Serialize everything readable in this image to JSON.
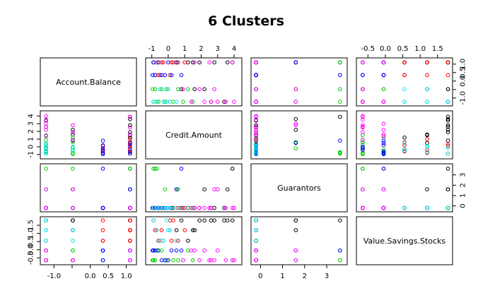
{
  "chart_data": {
    "type": "scatter",
    "subtype": "pairs-matrix",
    "title": "6  Clusters",
    "variables": [
      "Account.Balance",
      "Credit.Amount",
      "Guarantors",
      "Value.Savings.Stocks"
    ],
    "clusters": [
      {
        "id": 1,
        "color": "#000000"
      },
      {
        "id": 2,
        "color": "#ff0000"
      },
      {
        "id": 3,
        "color": "#00cd00"
      },
      {
        "id": 4,
        "color": "#0000ff"
      },
      {
        "id": 5,
        "color": "#00e5ee"
      },
      {
        "id": 6,
        "color": "#ff00ff"
      }
    ],
    "axes": {
      "Account.Balance": {
        "range": [
          -1.3,
          1.2
        ],
        "ticks": [
          -1.0,
          -0.5,
          0.0,
          0.5,
          1.0
        ],
        "tick_labels": [
          "-1.0",
          "",
          "0.0",
          "0.5",
          "1.0"
        ]
      },
      "Credit.Amount": {
        "range": [
          -1.2,
          4.3
        ],
        "ticks": [
          -1,
          0,
          1,
          2,
          3,
          4
        ],
        "tick_labels": [
          "-1",
          "0",
          "1",
          "2",
          "3",
          "4"
        ]
      },
      "Guarantors": {
        "range": [
          -0.3,
          3.8
        ],
        "ticks": [
          0,
          1,
          2,
          3
        ],
        "tick_labels": [
          "0",
          "1",
          "2",
          "3"
        ]
      },
      "Value.Savings.Stocks": {
        "range": [
          -0.75,
          1.85
        ],
        "ticks": [
          -1.0,
          -0.5,
          0.0,
          0.5,
          1.0,
          1.5
        ],
        "tick_labels": [
          "",
          "-0.5",
          "0.0",
          "0.5",
          "1.0",
          "1.5"
        ]
      }
    },
    "side_axes": {
      "top": {
        "Credit.Amount": [
          "-1",
          "0",
          "1",
          "2",
          "3",
          "4"
        ],
        "Value.Savings.Stocks": [
          "-0.5",
          "0.0",
          "0.5",
          "1.0",
          "1.5"
        ]
      },
      "right": {
        "Account.Balance": [
          "-1.0",
          "-0.5",
          "0.0",
          "0.5"
        ],
        "Guarantors": [
          "0",
          "1",
          "2",
          "3"
        ]
      },
      "bottom": {
        "Account.Balance": [
          "-1.0",
          "0.0",
          "0.5",
          "1.0"
        ],
        "Guarantors": [
          "0",
          "1",
          "2",
          "3"
        ]
      },
      "left": {
        "Credit.Amount": [
          "-1",
          "1",
          "3"
        ],
        "Value.Savings.Stocks": [
          "-0.5",
          "0.5",
          "1.0"
        ]
      }
    },
    "levels": {
      "Account.Balance": [
        -1.22,
        -0.48,
        0.35,
        1.1
      ],
      "Guarantors": [
        -0.2,
        1.6,
        3.6
      ],
      "Value.Savings.Stocks": [
        -0.65,
        -0.05,
        0.55,
        1.2,
        1.8
      ]
    },
    "points": [
      {
        "cluster": 1,
        "values": [
          1.1,
          3.6,
          1.6,
          1.8
        ]
      },
      {
        "cluster": 1,
        "values": [
          1.1,
          2.8,
          -0.2,
          1.8
        ]
      },
      {
        "cluster": 1,
        "values": [
          -0.48,
          2.2,
          1.6,
          1.8
        ]
      },
      {
        "cluster": 1,
        "values": [
          1.1,
          1.9,
          -0.2,
          1.8
        ]
      },
      {
        "cluster": 1,
        "values": [
          -1.22,
          3.4,
          -0.2,
          1.8
        ]
      },
      {
        "cluster": 1,
        "values": [
          1.1,
          1.5,
          -0.2,
          1.2
        ]
      },
      {
        "cluster": 1,
        "values": [
          -0.48,
          0.8,
          -0.2,
          1.8
        ]
      },
      {
        "cluster": 1,
        "values": [
          1.1,
          0.5,
          1.6,
          1.2
        ]
      },
      {
        "cluster": 1,
        "values": [
          -1.22,
          2.6,
          -0.2,
          1.8
        ]
      },
      {
        "cluster": 1,
        "values": [
          1.1,
          1.2,
          -0.2,
          0.55
        ]
      },
      {
        "cluster": 1,
        "values": [
          1.1,
          3.9,
          3.6,
          1.8
        ]
      },
      {
        "cluster": 1,
        "values": [
          -0.48,
          1.6,
          -0.2,
          1.2
        ]
      },
      {
        "cluster": 2,
        "values": [
          0.35,
          -0.5,
          -0.2,
          0.55
        ]
      },
      {
        "cluster": 2,
        "values": [
          1.1,
          -0.3,
          -0.2,
          0.55
        ]
      },
      {
        "cluster": 2,
        "values": [
          1.1,
          0.2,
          -0.2,
          0.55
        ]
      },
      {
        "cluster": 2,
        "values": [
          0.35,
          -0.8,
          -0.2,
          1.2
        ]
      },
      {
        "cluster": 2,
        "values": [
          1.1,
          0.6,
          -0.2,
          0.55
        ]
      },
      {
        "cluster": 2,
        "values": [
          1.1,
          -0.7,
          -0.2,
          1.2
        ]
      },
      {
        "cluster": 2,
        "values": [
          0.35,
          0.1,
          -0.2,
          1.8
        ]
      },
      {
        "cluster": 2,
        "values": [
          1.1,
          -0.9,
          -0.2,
          1.8
        ]
      },
      {
        "cluster": 2,
        "values": [
          1.1,
          1.0,
          -0.2,
          1.2
        ]
      },
      {
        "cluster": 2,
        "values": [
          0.35,
          -0.6,
          -0.2,
          0.55
        ]
      },
      {
        "cluster": 2,
        "values": [
          1.1,
          -0.4,
          -0.2,
          1.2
        ]
      },
      {
        "cluster": 2,
        "values": [
          1.1,
          0.3,
          -0.2,
          1.8
        ]
      },
      {
        "cluster": 3,
        "values": [
          -1.22,
          -0.9,
          -0.2,
          -0.65
        ]
      },
      {
        "cluster": 3,
        "values": [
          -1.22,
          -0.6,
          -0.2,
          -0.05
        ]
      },
      {
        "cluster": 3,
        "values": [
          -1.22,
          -0.2,
          1.6,
          -0.65
        ]
      },
      {
        "cluster": 3,
        "values": [
          -0.48,
          -0.8,
          3.6,
          -0.65
        ]
      },
      {
        "cluster": 3,
        "values": [
          -0.48,
          -0.4,
          -0.2,
          -0.05
        ]
      },
      {
        "cluster": 3,
        "values": [
          -1.22,
          0.3,
          -0.2,
          -0.65
        ]
      },
      {
        "cluster": 3,
        "values": [
          -0.48,
          0.6,
          1.6,
          -0.65
        ]
      },
      {
        "cluster": 3,
        "values": [
          -1.22,
          -0.7,
          3.6,
          -0.05
        ]
      },
      {
        "cluster": 3,
        "values": [
          -0.48,
          -0.1,
          -0.2,
          -0.65
        ]
      },
      {
        "cluster": 3,
        "values": [
          -1.22,
          0.9,
          -0.2,
          -0.65
        ]
      },
      {
        "cluster": 3,
        "values": [
          -0.48,
          1.2,
          -0.2,
          -0.05
        ]
      },
      {
        "cluster": 3,
        "values": [
          1.1,
          -0.9,
          3.6,
          -0.65
        ]
      },
      {
        "cluster": 3,
        "values": [
          -1.22,
          1.5,
          -0.2,
          -0.65
        ]
      },
      {
        "cluster": 3,
        "values": [
          -0.48,
          -0.95,
          -0.2,
          -0.65
        ]
      },
      {
        "cluster": 4,
        "values": [
          0.35,
          -0.8,
          -0.2,
          -0.05
        ]
      },
      {
        "cluster": 4,
        "values": [
          0.35,
          -0.4,
          -0.2,
          -0.65
        ]
      },
      {
        "cluster": 4,
        "values": [
          1.1,
          -0.6,
          -0.2,
          -0.05
        ]
      },
      {
        "cluster": 4,
        "values": [
          0.35,
          0.2,
          -0.2,
          -0.05
        ]
      },
      {
        "cluster": 4,
        "values": [
          1.1,
          0.5,
          1.6,
          -0.05
        ]
      },
      {
        "cluster": 4,
        "values": [
          0.35,
          -0.2,
          -0.2,
          -0.65
        ]
      },
      {
        "cluster": 4,
        "values": [
          1.1,
          -0.9,
          -0.2,
          -0.05
        ]
      },
      {
        "cluster": 4,
        "values": [
          0.35,
          0.8,
          3.6,
          -0.05
        ]
      },
      {
        "cluster": 4,
        "values": [
          1.1,
          0.0,
          -0.2,
          -0.65
        ]
      },
      {
        "cluster": 4,
        "values": [
          0.35,
          -0.95,
          -0.2,
          -0.05
        ]
      },
      {
        "cluster": 5,
        "values": [
          -1.22,
          -0.7,
          -0.2,
          1.2
        ]
      },
      {
        "cluster": 5,
        "values": [
          -1.22,
          -0.3,
          -0.2,
          0.55
        ]
      },
      {
        "cluster": 5,
        "values": [
          -1.22,
          0.1,
          -0.2,
          1.2
        ]
      },
      {
        "cluster": 5,
        "values": [
          -0.48,
          -0.5,
          -0.2,
          0.55
        ]
      },
      {
        "cluster": 5,
        "values": [
          -1.22,
          -0.9,
          -0.2,
          1.8
        ]
      },
      {
        "cluster": 5,
        "values": [
          -0.48,
          0.0,
          -0.2,
          1.2
        ]
      },
      {
        "cluster": 5,
        "values": [
          -1.22,
          0.5,
          -0.2,
          0.55
        ]
      },
      {
        "cluster": 5,
        "values": [
          -1.22,
          -0.1,
          -0.2,
          1.8
        ]
      },
      {
        "cluster": 6,
        "values": [
          -1.22,
          2.2,
          -0.2,
          -0.05
        ]
      },
      {
        "cluster": 6,
        "values": [
          -1.22,
          3.5,
          -0.2,
          -0.65
        ]
      },
      {
        "cluster": 6,
        "values": [
          -0.48,
          2.8,
          1.6,
          -0.65
        ]
      },
      {
        "cluster": 6,
        "values": [
          -1.22,
          1.4,
          -0.2,
          -0.05
        ]
      },
      {
        "cluster": 6,
        "values": [
          1.1,
          2.5,
          -0.2,
          -0.65
        ]
      },
      {
        "cluster": 6,
        "values": [
          -0.48,
          1.9,
          -0.2,
          -0.65
        ]
      },
      {
        "cluster": 6,
        "values": [
          -1.22,
          3.0,
          1.6,
          -0.05
        ]
      },
      {
        "cluster": 6,
        "values": [
          1.1,
          3.9,
          -0.2,
          -0.65
        ]
      },
      {
        "cluster": 6,
        "values": [
          -0.48,
          0.9,
          -0.2,
          -0.65
        ]
      },
      {
        "cluster": 6,
        "values": [
          -1.22,
          2.6,
          -0.2,
          -0.65
        ]
      },
      {
        "cluster": 6,
        "values": [
          1.1,
          1.6,
          -0.2,
          -0.05
        ]
      },
      {
        "cluster": 6,
        "values": [
          -1.22,
          4.0,
          -0.2,
          -0.65
        ]
      }
    ]
  }
}
